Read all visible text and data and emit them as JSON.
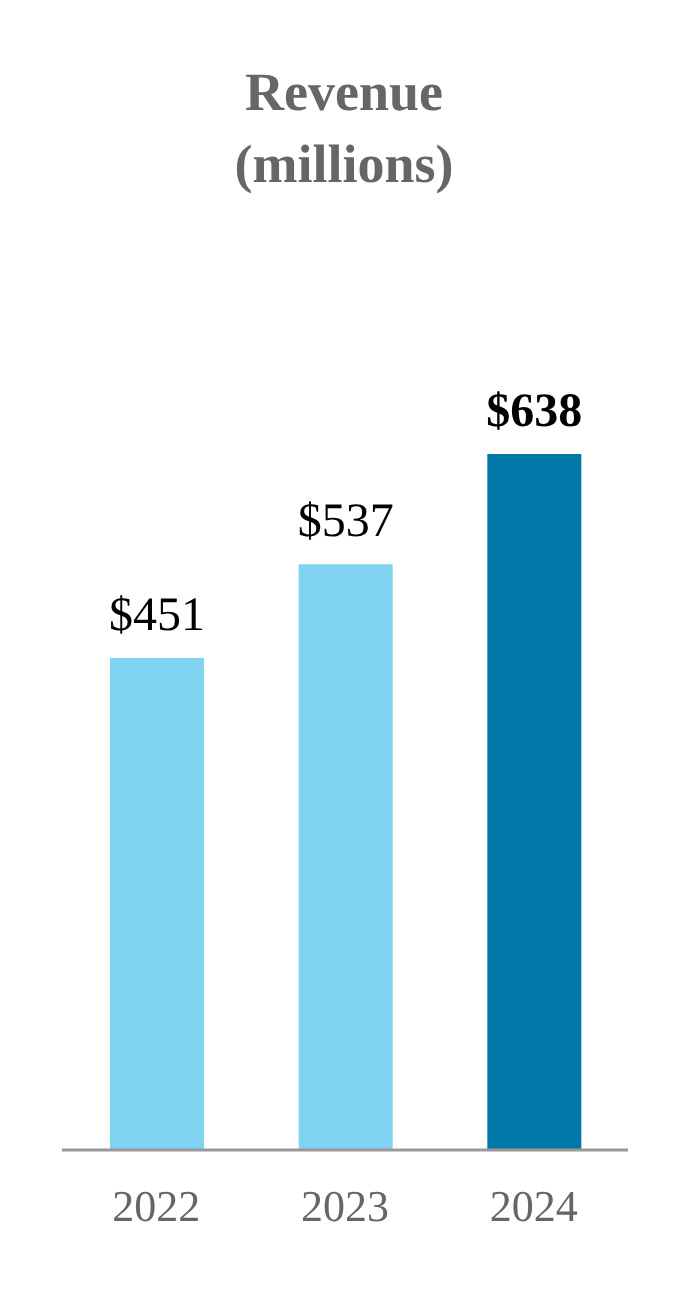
{
  "chart_data": {
    "type": "bar",
    "title": "Revenue\n(millions)",
    "categories": [
      "2022",
      "2023",
      "2024"
    ],
    "values": [
      451,
      537,
      638
    ],
    "colors": [
      "#7fd3f0",
      "#7fd3f0",
      "#0079a8"
    ],
    "value_labels": [
      "$451",
      "$537",
      "$638"
    ]
  }
}
